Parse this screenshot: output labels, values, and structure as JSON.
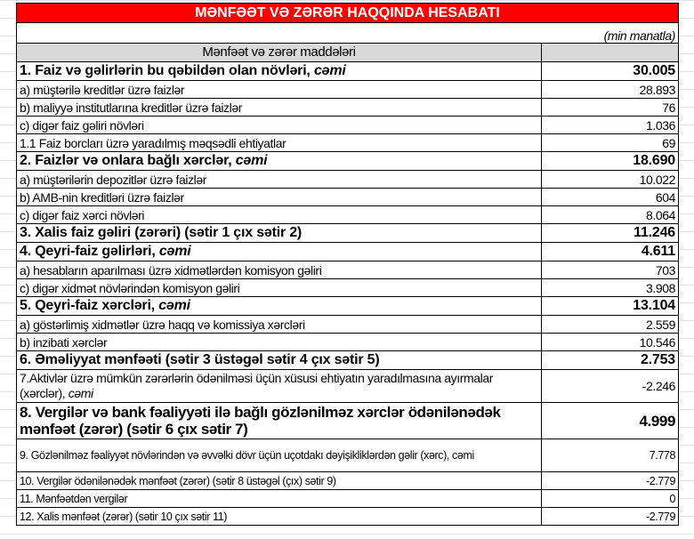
{
  "title": "MƏNFƏƏT VƏ ZƏRƏR HAQQINDA HESABATI",
  "unit": "(min manatla)",
  "header": "Mənfəət və zərər maddələri",
  "rows": [
    {
      "label": "1. Faiz və gəlirlərin bu qəbildən olan növləri, ",
      "em": "cəmi",
      "value": "30.005",
      "bold": true
    },
    {
      "label": "a) müştərilə kreditlər üzrə faizlər",
      "value": "28.893"
    },
    {
      "label": "b) maliyyə institutlarına kreditlər üzrə faizlər",
      "value": "76"
    },
    {
      "label": "c) digər faiz gəliri növləri",
      "value": "1.036"
    },
    {
      "label": "1.1 Faiz borcları üzrə yaradılmış məqsədli ehtiyatlar",
      "value": "69"
    },
    {
      "label": "2. Faizlər və onlara bağlı xərclər, ",
      "em": "cəmi",
      "value": "18.690",
      "bold": true
    },
    {
      "label": "a) müştərilərin depozitlər üzrə faizlər",
      "value": "10.022"
    },
    {
      "label": "b) AMB-nin kreditləri üzrə faizlər",
      "value": "604"
    },
    {
      "label": "c) digər faiz xərci növləri",
      "value": "8.064"
    },
    {
      "label": "3. Xalis faiz gəliri (zərəri) (sətir 1 çıx sətir 2)",
      "value": "11.246",
      "bold": true
    },
    {
      "label": "4. Qeyri-faiz gəlirləri, ",
      "em": "cəmi",
      "value": "4.611",
      "bold": true
    },
    {
      "label": "a) hesabların aparılması üzrə xidmətlərdən komisyon gəliri",
      "value": "703"
    },
    {
      "label": "c) digər xidmət növlərindən komisyon gəliri",
      "value": "3.908"
    },
    {
      "label": "5. Qeyri-faiz xərcləri, ",
      "em": "cəmi",
      "value": "13.104",
      "bold": true
    },
    {
      "label": "a) göstərlimiş xidmətlər üzrə haqq və komissiya xərcləri",
      "value": "2.559"
    },
    {
      "label": "b) inzibati xərclər",
      "value": "10.546"
    },
    {
      "label": "6. Əməliyyat mənfəəti (sətir 3 üstəgəl sətir 4 çıx sətir 5)",
      "value": "2.753",
      "bold": true
    },
    {
      "label": "7.Aktivlər üzrə mümkün zərərlərin ödənilməsi üçün xüsusi ehtiyatın yaradılmasına ayırmalar (xərclər), ",
      "em": "cəmi",
      "value": "-2.246",
      "kind": "tall"
    },
    {
      "label": "8. Vergilər və bank fəaliyyəti ilə bağlı gözlənilməz xərclər ödənilənədək mənfəət (zərər) (sətir 6 çıx sətir 7)",
      "value": "4.999",
      "kind": "tall2"
    },
    {
      "label": "9. Gözlənilməz fəaliyyət növlərindən və əvvəlki dövr üçün uçotdakı dəyişikliklərdən gəlir (xərc), cəmi",
      "value": "7.778",
      "kind": "tall small"
    },
    {
      "label": "10. Vergilər ödənilənədək mənfəət (zərər) (sətir 8 üstəgəl (çıx) sətir 9)",
      "value": "-2.779",
      "kind": "small"
    },
    {
      "label": "11. Mənfəətdən vergilər",
      "value": "0",
      "kind": "small"
    },
    {
      "label": "12. Xalis mənfəət (zərər) (sətir 10 çıx sətir 11)",
      "value": "-2.779",
      "kind": "small"
    }
  ]
}
